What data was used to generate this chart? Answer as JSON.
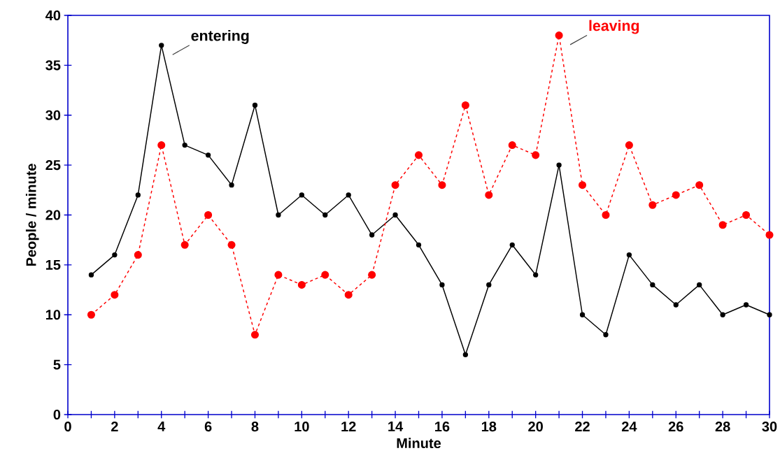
{
  "chart_data": {
    "type": "line",
    "xlabel": "Minute",
    "ylabel": "People / minute",
    "x": [
      1,
      2,
      3,
      4,
      5,
      6,
      7,
      8,
      9,
      10,
      11,
      12,
      13,
      14,
      15,
      16,
      17,
      18,
      19,
      20,
      21,
      22,
      23,
      24,
      25,
      26,
      27,
      28,
      29,
      30
    ],
    "series": [
      {
        "name": "entering",
        "color": "#000000",
        "line_style": "solid",
        "values": [
          14,
          16,
          22,
          37,
          27,
          26,
          23,
          31,
          20,
          22,
          20,
          22,
          18,
          20,
          17,
          13,
          6,
          13,
          17,
          14,
          25,
          10,
          8,
          16,
          13,
          11,
          13,
          10,
          11,
          10
        ]
      },
      {
        "name": "leaving",
        "color": "#ff0000",
        "line_style": "dashed",
        "values": [
          10,
          12,
          16,
          27,
          17,
          20,
          17,
          8,
          14,
          13,
          14,
          12,
          14,
          23,
          26,
          23,
          31,
          22,
          27,
          26,
          38,
          23,
          20,
          27,
          21,
          22,
          23,
          19,
          20,
          18
        ]
      }
    ],
    "xlim": [
      0,
      30
    ],
    "xticks": [
      0,
      2,
      4,
      6,
      8,
      10,
      12,
      14,
      16,
      18,
      20,
      22,
      24,
      26,
      28,
      30
    ],
    "ylim": [
      0,
      40
    ],
    "yticks": [
      0,
      5,
      10,
      15,
      20,
      25,
      30,
      35,
      40
    ],
    "marker": "circle",
    "grid": false,
    "legend": false
  }
}
